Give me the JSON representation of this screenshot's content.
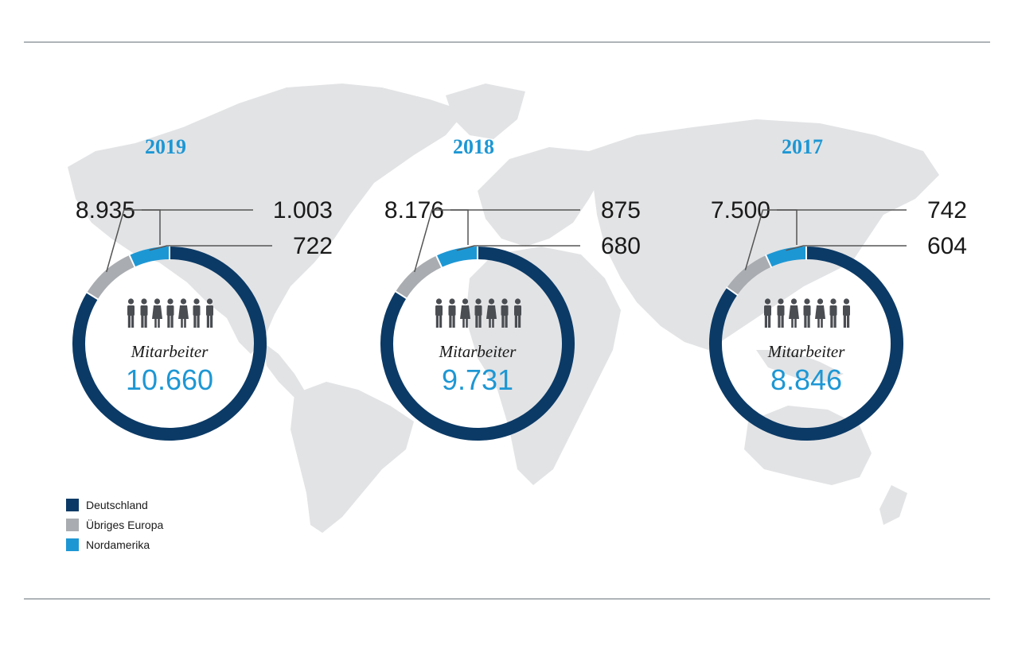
{
  "colors": {
    "Deutschland": "#0b3a66",
    "Übriges Europa": "#a9acb0",
    "Nordamerika": "#1d97d4",
    "map": "#e2e3e5",
    "accent": "#1d97d4",
    "rule": "#5d6a72"
  },
  "icons": [
    "people-icon",
    "world-map"
  ],
  "center_label": "Mitarbeiter",
  "legend": [
    "Deutschland",
    "Übriges Europa",
    "Nordamerika"
  ],
  "chart_data": [
    {
      "type": "pie",
      "title": "2019",
      "donut": true,
      "categories": [
        "Deutschland",
        "Übriges Europa",
        "Nordamerika"
      ],
      "values": [
        8935,
        1003,
        722
      ],
      "value_labels": [
        "8.935",
        "1.003",
        "722"
      ],
      "total_label": "10.660"
    },
    {
      "type": "pie",
      "title": "2018",
      "donut": true,
      "categories": [
        "Deutschland",
        "Übriges Europa",
        "Nordamerika"
      ],
      "values": [
        8176,
        875,
        680
      ],
      "value_labels": [
        "8.176",
        "875",
        "680"
      ],
      "total_label": "9.731"
    },
    {
      "type": "pie",
      "title": "2017",
      "donut": true,
      "categories": [
        "Deutschland",
        "Übriges Europa",
        "Nordamerika"
      ],
      "values": [
        7500,
        742,
        604
      ],
      "value_labels": [
        "7.500",
        "742",
        "604"
      ],
      "total_label": "8.846"
    }
  ]
}
